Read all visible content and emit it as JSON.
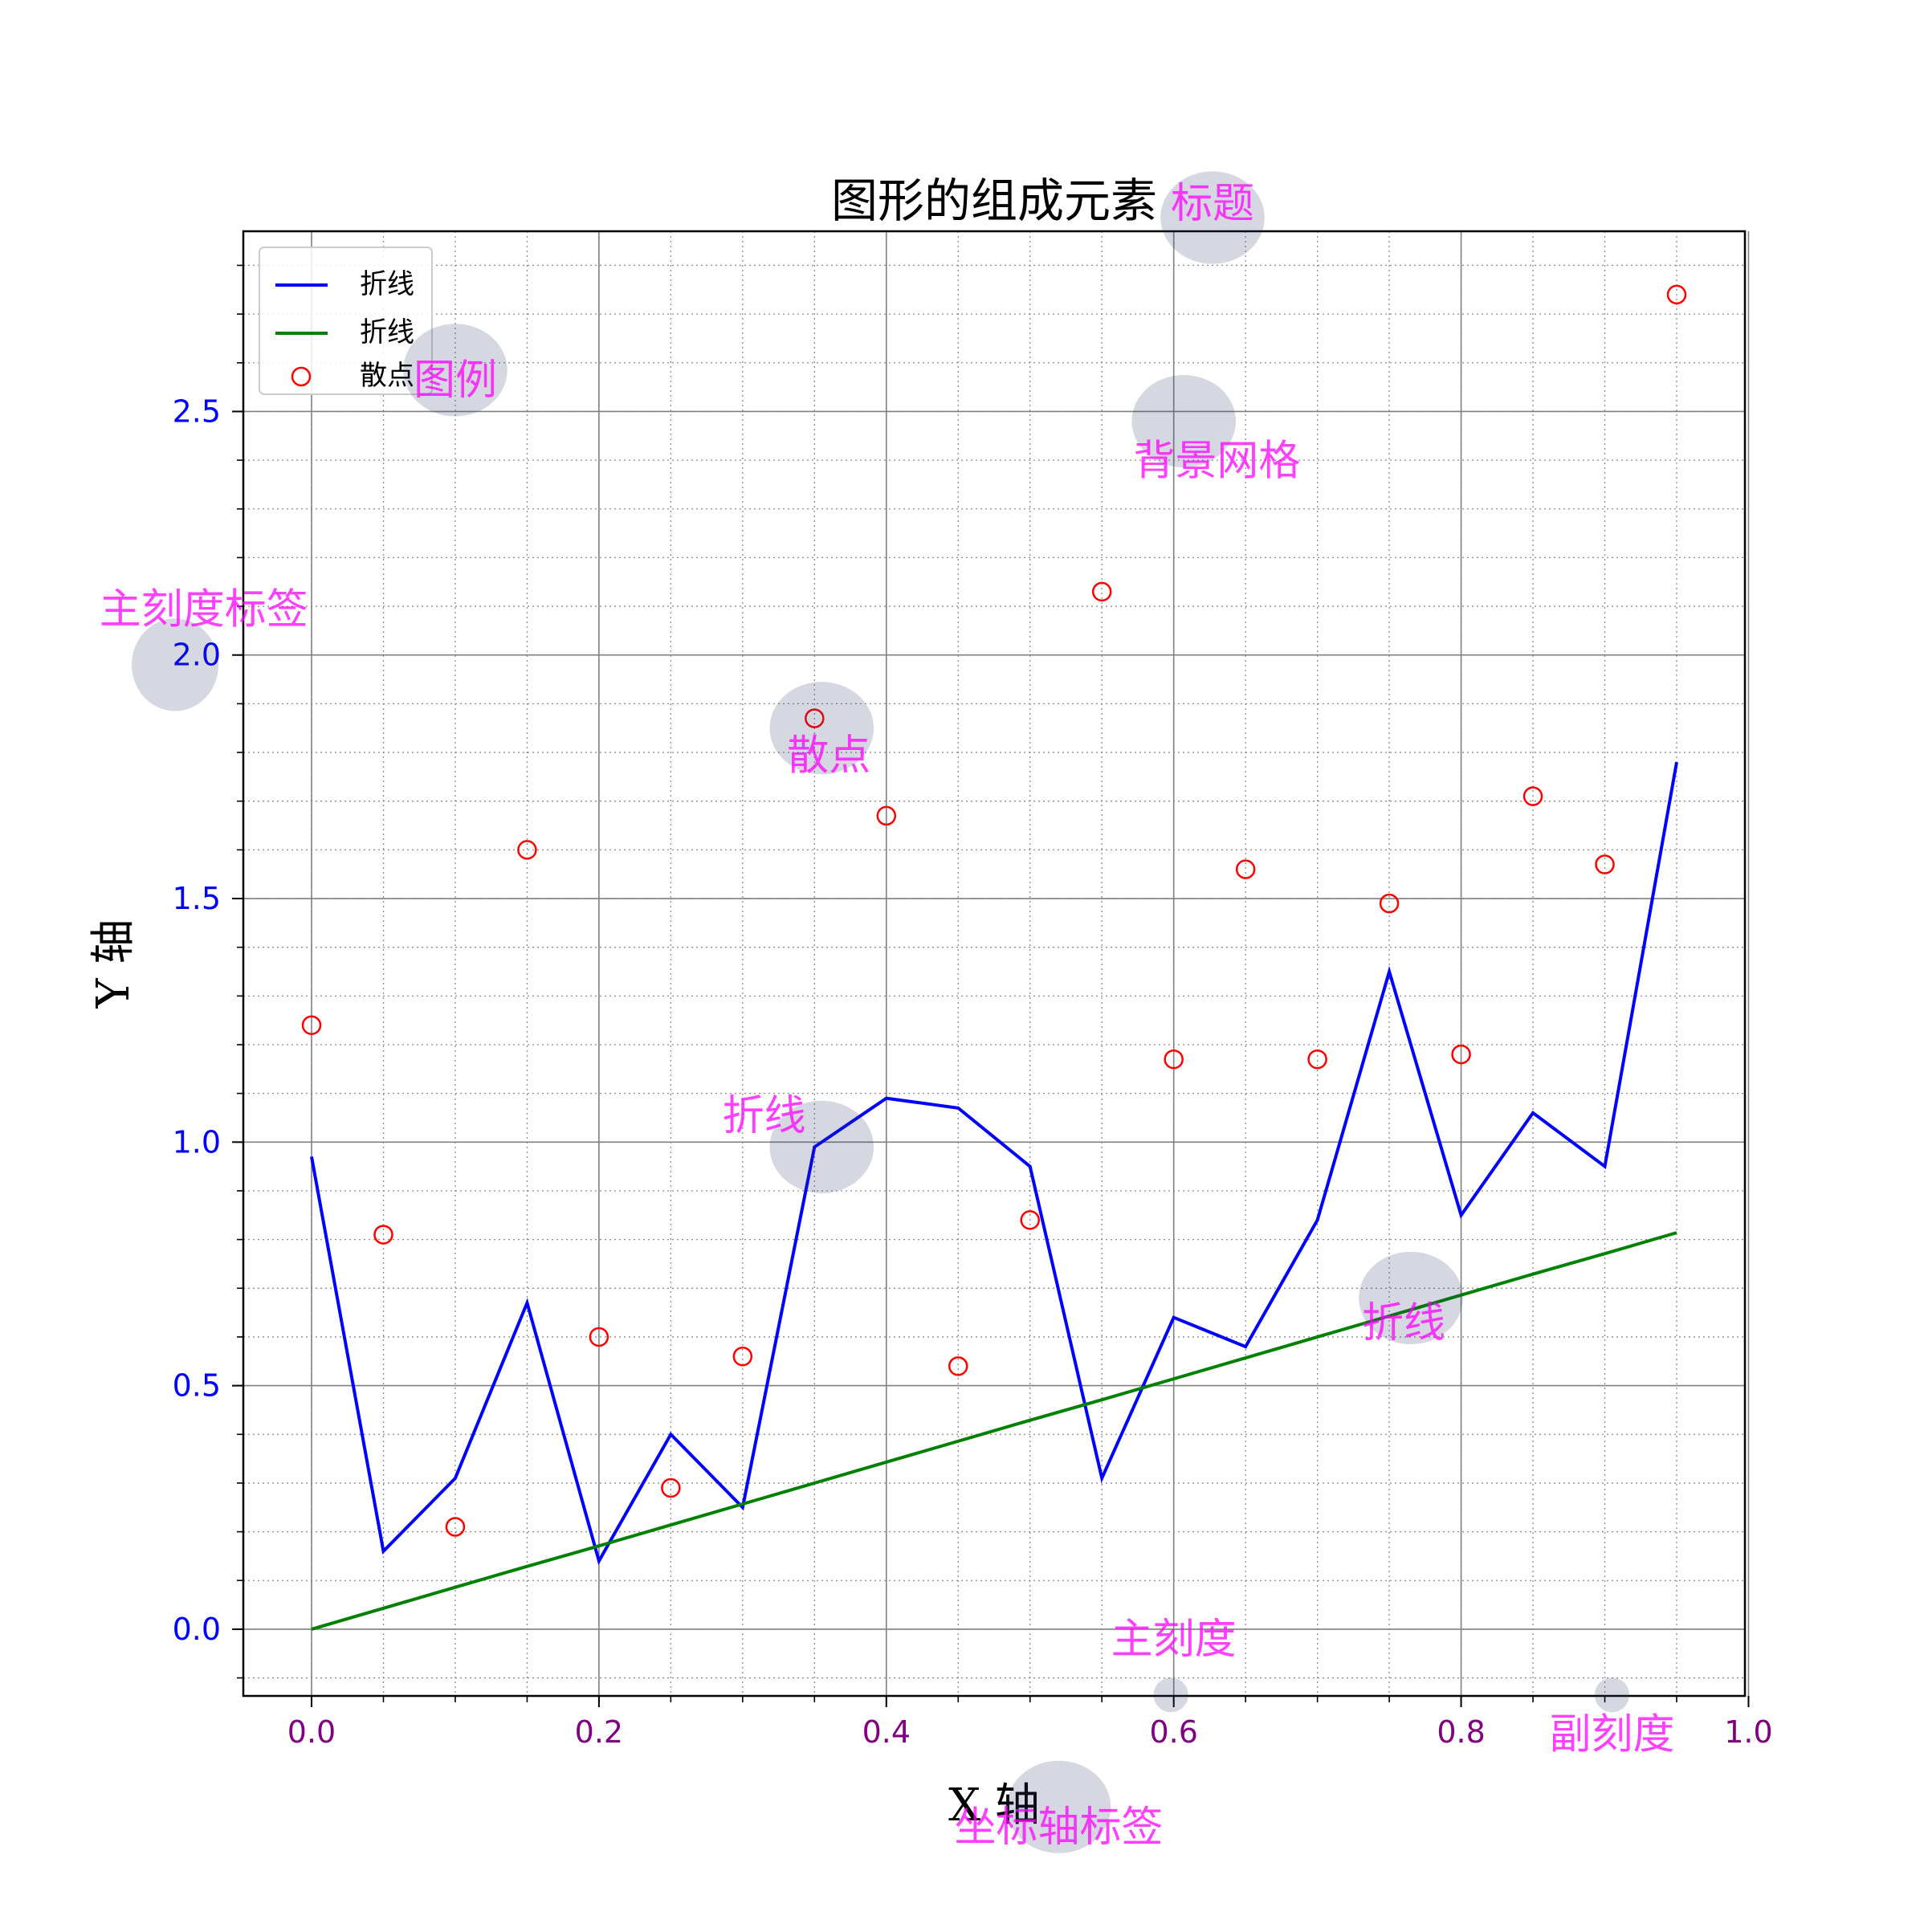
{
  "chart_data": {
    "type": "line",
    "title": "图形的组成元素",
    "xlabel": "X 轴",
    "ylabel": "Y 轴",
    "xlim": [
      -0.0475,
      0.9975
    ],
    "ylim": [
      -0.137,
      2.87
    ],
    "x_major_ticks": [
      0.0,
      0.2,
      0.4,
      0.6,
      0.8,
      1.0
    ],
    "x_tick_labels": [
      "0.0",
      "0.2",
      "0.4",
      "0.6",
      "0.8",
      "1.0"
    ],
    "y_major_ticks": [
      0.0,
      0.5,
      1.0,
      1.5,
      2.0,
      2.5
    ],
    "y_tick_labels": [
      "0.0",
      "0.5",
      "1.0",
      "1.5",
      "2.0",
      "2.5"
    ],
    "x_minor_step": 0.05,
    "y_minor_step": 0.1,
    "grid": true,
    "legend_position": "top-left",
    "x": [
      0.0,
      0.05,
      0.1,
      0.15,
      0.2,
      0.25,
      0.3,
      0.35,
      0.4,
      0.45,
      0.5,
      0.55,
      0.6,
      0.65,
      0.7,
      0.75,
      0.8,
      0.85,
      0.9,
      0.95
    ],
    "series": [
      {
        "name": "折线",
        "kind": "line",
        "color": "#0000ff",
        "values": [
          0.97,
          0.16,
          0.31,
          0.67,
          0.14,
          0.4,
          0.25,
          0.99,
          1.09,
          1.07,
          0.95,
          0.31,
          0.64,
          0.58,
          0.84,
          1.35,
          0.85,
          1.06,
          0.95,
          1.78
        ]
      },
      {
        "name": "折线",
        "kind": "line",
        "color": "#008000",
        "values": [
          0.0,
          0.043,
          0.086,
          0.129,
          0.171,
          0.214,
          0.257,
          0.3,
          0.343,
          0.386,
          0.429,
          0.471,
          0.514,
          0.557,
          0.6,
          0.643,
          0.686,
          0.729,
          0.771,
          0.814
        ]
      },
      {
        "name": "散点",
        "kind": "scatter",
        "color": "#ff0000",
        "values": [
          1.24,
          0.81,
          0.21,
          1.6,
          0.6,
          0.29,
          0.56,
          1.87,
          1.67,
          0.54,
          0.84,
          2.13,
          1.17,
          1.56,
          1.17,
          1.49,
          1.18,
          1.71,
          1.57,
          2.74
        ]
      }
    ],
    "annotations": [
      {
        "text": "标题",
        "px": 0.627,
        "py": 2.898,
        "bx": 0.627,
        "by": 2.898,
        "rx": 36,
        "ry": 32
      },
      {
        "text": "图例",
        "px": 0.1,
        "py": 2.535,
        "bx": 0.1,
        "by": 2.585,
        "rx": 36,
        "ry": 32
      },
      {
        "text": "背景网格",
        "px": 0.63,
        "py": 2.37,
        "bx": 0.607,
        "by": 2.48,
        "rx": 36,
        "ry": 32
      },
      {
        "text": "主刻度标签",
        "px": -0.075,
        "py": 2.065,
        "bx": -0.095,
        "by": 1.98,
        "rx": 30,
        "ry": 32
      },
      {
        "text": "散点",
        "px": 0.36,
        "py": 1.765,
        "bx": 0.355,
        "by": 1.85,
        "rx": 36,
        "ry": 32
      },
      {
        "text": "折线",
        "px": 0.315,
        "py": 1.025,
        "bx": 0.355,
        "by": 0.99,
        "rx": 36,
        "ry": 32
      },
      {
        "text": "折线",
        "px": 0.76,
        "py": 0.6,
        "bx": 0.765,
        "by": 0.68,
        "rx": 36,
        "ry": 32
      },
      {
        "text": "主刻度",
        "px": 0.6,
        "py": -0.05,
        "bx": 0.598,
        "by": -0.135,
        "rx": 12,
        "ry": 12
      },
      {
        "text": "副刻度",
        "px": 0.905,
        "py": -0.245,
        "bx": 0.905,
        "by": -0.135,
        "rx": 12,
        "ry": 12
      },
      {
        "text": "坐标轴标签",
        "px": 0.52,
        "py": -0.435,
        "bx": 0.52,
        "by": -0.365,
        "rx": 36,
        "ry": 32
      }
    ]
  },
  "colors": {
    "xtick_label": "#800080",
    "ytick_label": "#0000ff",
    "annotation_text": "#ff00ff",
    "annotation_bubble": "#2f3d6b",
    "grid": "#808080"
  }
}
